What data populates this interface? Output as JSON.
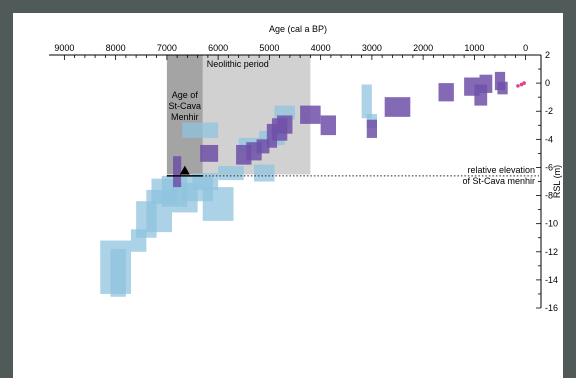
{
  "chart_data": {
    "type": "scatter",
    "title": "",
    "xlabel": "Age (cal a BP)",
    "ylabel": "RSL (m)",
    "xlim": [
      9300,
      -300
    ],
    "ylim": [
      -16,
      2
    ],
    "x_ticks": [
      9000,
      8000,
      7000,
      6000,
      5000,
      4000,
      3000,
      2000,
      1000,
      0
    ],
    "y_ticks": [
      2,
      0,
      -2,
      -4,
      -6,
      -8,
      -10,
      -12,
      -14,
      -16
    ],
    "x_tick_labels": [
      "9000",
      "8000",
      "7000",
      "6000",
      "5000",
      "4000",
      "3000",
      "2000",
      "1000",
      "0"
    ],
    "y_tick_labels": [
      "2",
      "0",
      "-2",
      "-4",
      "-6",
      "-8",
      "-10",
      "-12",
      "-14",
      "-16"
    ],
    "periods": [
      {
        "label": "Neolithic period",
        "x_from": 6300,
        "x_to": 4200,
        "y_from": -6.5,
        "y_to": 2,
        "color": "#c9c9c9"
      },
      {
        "label_lines": [
          "Age of",
          "St-Cava",
          "Menhir"
        ],
        "x_from": 7000,
        "x_to": 6300,
        "y_from": -6.5,
        "y_to": 2,
        "color": "#9a9a9a"
      }
    ],
    "reference_line": {
      "y": -6.6,
      "label_lines": [
        "relative elevation",
        "of St-Cava menhir"
      ]
    },
    "menhir_marker": {
      "x": 6650,
      "y": -6.3
    },
    "menhir_bar": {
      "x_from": 7000,
      "x_to": 6300,
      "y": -6.6
    },
    "series": [
      {
        "marker": "terrestrial",
        "color": "#8fc3de",
        "boxes": [
          [
            8300,
            7700,
            -11.2,
            -15.0
          ],
          [
            8100,
            7800,
            -11.8,
            -15.2
          ],
          [
            7700,
            7400,
            -10.4,
            -12.0
          ],
          [
            7600,
            7200,
            -8.4,
            -11.0
          ],
          [
            7400,
            6900,
            -7.6,
            -10.6
          ],
          [
            7300,
            6800,
            -6.8,
            -8.6
          ],
          [
            7100,
            6600,
            -6.6,
            -8.8
          ],
          [
            6900,
            6400,
            -7.1,
            -9.2
          ],
          [
            6700,
            6100,
            -6.6,
            -8.4
          ],
          [
            6500,
            6000,
            -6.4,
            -7.6
          ],
          [
            6300,
            5700,
            -7.4,
            -9.8
          ],
          [
            6000,
            5500,
            -5.9,
            -6.9
          ],
          [
            5300,
            4900,
            -5.8,
            -7.0
          ],
          [
            5600,
            5100,
            -3.9,
            -4.9
          ],
          [
            5200,
            4700,
            -3.4,
            -4.4
          ],
          [
            4900,
            4500,
            -1.6,
            -2.6
          ],
          [
            6700,
            6000,
            -2.8,
            -3.9
          ],
          [
            3200,
            3000,
            -0.1,
            -2.5
          ],
          [
            3100,
            2900,
            -2.2,
            -3.2
          ]
        ]
      },
      {
        "marker": "marine",
        "color": "#6e50a8",
        "boxes": [
          [
            6880,
            6720,
            -5.2,
            -7.4
          ],
          [
            6350,
            6000,
            -4.4,
            -5.6
          ],
          [
            5650,
            5350,
            -4.4,
            -5.8
          ],
          [
            5450,
            5150,
            -4.2,
            -5.5
          ],
          [
            5250,
            5000,
            -4.0,
            -5.0
          ],
          [
            5050,
            4850,
            -2.9,
            -4.6
          ],
          [
            4950,
            4650,
            -2.5,
            -4.1
          ],
          [
            4850,
            4550,
            -2.3,
            -3.6
          ],
          [
            4400,
            4000,
            -1.6,
            -2.9
          ],
          [
            4000,
            3700,
            -2.3,
            -3.7
          ],
          [
            3100,
            2900,
            -2.6,
            -3.9
          ],
          [
            2750,
            2250,
            -1.0,
            -2.4
          ],
          [
            1700,
            1400,
            0.0,
            -1.3
          ],
          [
            1200,
            900,
            0.4,
            -0.9
          ],
          [
            1000,
            750,
            -0.1,
            -1.6
          ],
          [
            900,
            650,
            0.6,
            -0.7
          ],
          [
            600,
            400,
            0.8,
            -0.5
          ],
          [
            550,
            350,
            0.1,
            -0.8
          ]
        ]
      },
      {
        "marker": "recent",
        "color": "#e0408a",
        "points": [
          [
            150,
            -0.2
          ],
          [
            80,
            -0.1
          ],
          [
            30,
            0.0
          ]
        ]
      }
    ]
  }
}
